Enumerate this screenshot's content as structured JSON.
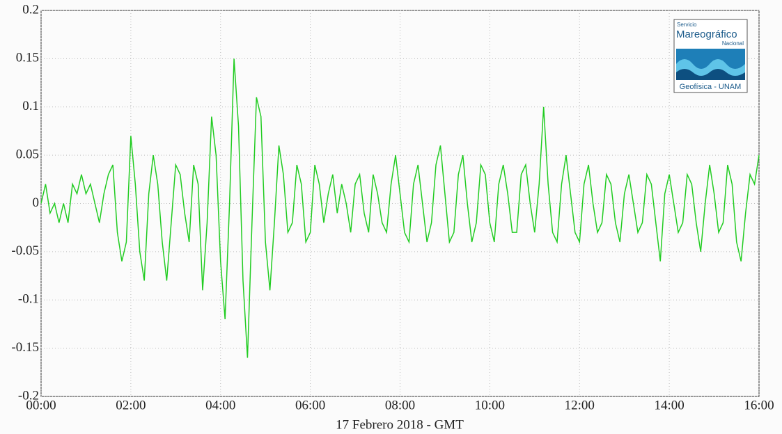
{
  "chart_data": {
    "type": "line",
    "xlabel": "17 Febrero 2018 - GMT",
    "x": [
      0,
      0.1,
      0.2,
      0.3,
      0.4,
      0.5,
      0.6,
      0.7,
      0.8,
      0.9,
      1,
      1.1,
      1.2,
      1.3,
      1.4,
      1.5,
      1.6,
      1.7,
      1.8,
      1.9,
      2,
      2.1,
      2.2,
      2.3,
      2.4,
      2.5,
      2.6,
      2.7,
      2.8,
      2.9,
      3,
      3.1,
      3.2,
      3.3,
      3.4,
      3.5,
      3.6,
      3.7,
      3.8,
      3.9,
      4,
      4.1,
      4.2,
      4.3,
      4.4,
      4.5,
      4.6,
      4.7,
      4.8,
      4.9,
      5,
      5.1,
      5.2,
      5.3,
      5.4,
      5.5,
      5.6,
      5.7,
      5.8,
      5.9,
      6,
      6.1,
      6.2,
      6.3,
      6.4,
      6.5,
      6.6,
      6.7,
      6.8,
      6.9,
      7,
      7.1,
      7.2,
      7.3,
      7.4,
      7.5,
      7.6,
      7.7,
      7.8,
      7.9,
      8,
      8.1,
      8.2,
      8.3,
      8.4,
      8.5,
      8.6,
      8.7,
      8.8,
      8.9,
      9,
      9.1,
      9.2,
      9.3,
      9.4,
      9.5,
      9.6,
      9.7,
      9.8,
      9.9,
      10,
      10.1,
      10.2,
      10.3,
      10.4,
      10.5,
      10.6,
      10.7,
      10.8,
      10.9,
      11,
      11.1,
      11.2,
      11.3,
      11.4,
      11.5,
      11.6,
      11.7,
      11.8,
      11.9,
      12,
      12.1,
      12.2,
      12.3,
      12.4,
      12.5,
      12.6,
      12.7,
      12.8,
      12.9,
      13,
      13.1,
      13.2,
      13.3,
      13.4,
      13.5,
      13.6,
      13.7,
      13.8,
      13.9,
      14,
      14.1,
      14.2,
      14.3,
      14.4,
      14.5,
      14.6,
      14.7,
      14.8,
      14.9,
      15,
      15.1,
      15.2,
      15.3,
      15.4,
      15.5,
      15.6,
      15.7,
      15.8,
      15.9,
      16
    ],
    "series": [
      {
        "color": "#22cc22",
        "values": [
          0.0,
          0.02,
          -0.01,
          0.0,
          -0.02,
          0.0,
          -0.02,
          0.02,
          0.01,
          0.03,
          0.01,
          0.02,
          0.0,
          -0.02,
          0.01,
          0.03,
          0.04,
          -0.03,
          -0.06,
          -0.04,
          0.07,
          0.02,
          -0.05,
          -0.08,
          0.01,
          0.05,
          0.02,
          -0.04,
          -0.08,
          -0.02,
          0.04,
          0.03,
          -0.01,
          -0.04,
          0.04,
          0.02,
          -0.09,
          -0.02,
          0.09,
          0.05,
          -0.06,
          -0.12,
          0.0,
          0.15,
          0.08,
          -0.08,
          -0.16,
          -0.02,
          0.11,
          0.09,
          -0.04,
          -0.09,
          -0.02,
          0.06,
          0.03,
          -0.03,
          -0.02,
          0.04,
          0.02,
          -0.04,
          -0.03,
          0.04,
          0.02,
          -0.02,
          0.01,
          0.03,
          -0.01,
          0.02,
          0.0,
          -0.03,
          0.02,
          0.03,
          -0.01,
          -0.03,
          0.03,
          0.01,
          -0.02,
          -0.03,
          0.02,
          0.05,
          0.01,
          -0.03,
          -0.04,
          0.02,
          0.04,
          0.0,
          -0.04,
          -0.02,
          0.04,
          0.06,
          0.01,
          -0.04,
          -0.03,
          0.03,
          0.05,
          0.0,
          -0.04,
          -0.02,
          0.04,
          0.03,
          -0.02,
          -0.04,
          0.02,
          0.04,
          0.01,
          -0.03,
          -0.03,
          0.03,
          0.04,
          0.0,
          -0.03,
          0.02,
          0.1,
          0.02,
          -0.03,
          -0.04,
          0.02,
          0.05,
          0.01,
          -0.03,
          -0.04,
          0.02,
          0.04,
          0.0,
          -0.03,
          -0.02,
          0.03,
          0.02,
          -0.02,
          -0.04,
          0.01,
          0.03,
          0.0,
          -0.03,
          -0.02,
          0.03,
          0.02,
          -0.02,
          -0.06,
          0.01,
          0.03,
          0.0,
          -0.03,
          -0.02,
          0.03,
          0.02,
          -0.02,
          -0.05,
          0.0,
          0.04,
          0.01,
          -0.03,
          -0.02,
          0.04,
          0.02,
          -0.04,
          -0.06,
          -0.01,
          0.03,
          0.02,
          0.05
        ]
      }
    ],
    "xlim": [
      0,
      16
    ],
    "xticks": [
      {
        "value": 0,
        "label": "00:00"
      },
      {
        "value": 2,
        "label": "02:00"
      },
      {
        "value": 4,
        "label": "04:00"
      },
      {
        "value": 6,
        "label": "06:00"
      },
      {
        "value": 8,
        "label": "08:00"
      },
      {
        "value": 10,
        "label": "10:00"
      },
      {
        "value": 12,
        "label": "12:00"
      },
      {
        "value": 14,
        "label": "14:00"
      },
      {
        "value": 16,
        "label": "16:00"
      }
    ],
    "ylim": [
      -0.2,
      0.2
    ],
    "yticks": [
      -0.2,
      -0.15,
      -0.1,
      -0.05,
      0,
      0.05,
      0.1,
      0.15,
      0.2
    ],
    "grid": true
  },
  "logo": {
    "line1": "Servicio",
    "line2": "Mareográfico",
    "line3": "Nacional",
    "line4": "Geofísica - UNAM"
  }
}
